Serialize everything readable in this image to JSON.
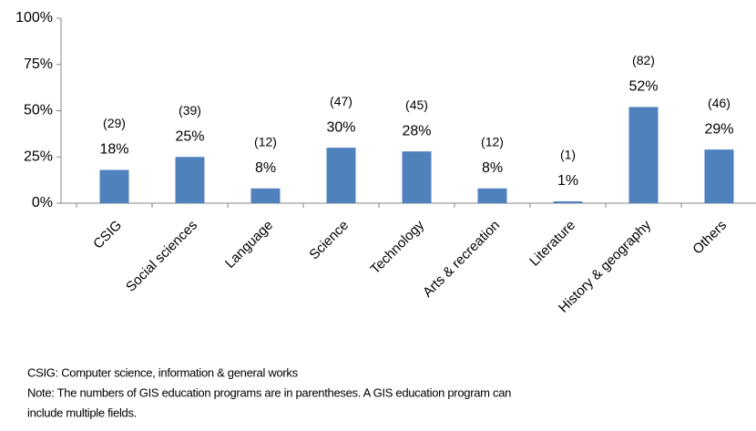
{
  "chart_data": {
    "type": "bar",
    "categories": [
      "CSIG",
      "Social sciences",
      "Language",
      "Science",
      "Technology",
      "Arts & recreation",
      "Literature",
      "History & geography",
      "Others"
    ],
    "values": [
      18,
      25,
      8,
      30,
      28,
      8,
      1,
      52,
      29
    ],
    "value_labels": [
      "18%",
      "25%",
      "8%",
      "30%",
      "28%",
      "8%",
      "1%",
      "52%",
      "29%"
    ],
    "count_labels": [
      "(29)",
      "(39)",
      "(12)",
      "(47)",
      "(45)",
      "(12)",
      "(1)",
      "(82)",
      "(46)"
    ],
    "color": "#4f81bd",
    "ylim": [
      0,
      100
    ],
    "yticks": [
      {
        "value": 0,
        "label": "0%"
      },
      {
        "value": 25,
        "label": "25%"
      },
      {
        "value": 50,
        "label": "50%"
      },
      {
        "value": 75,
        "label": "75%"
      },
      {
        "value": 100,
        "label": "100%"
      }
    ],
    "grid": false,
    "notes": [
      "CSIG: Computer science, information & general works",
      "Note: The numbers of GIS education programs are in parentheses. A GIS education program can",
      "include multiple fields."
    ]
  }
}
